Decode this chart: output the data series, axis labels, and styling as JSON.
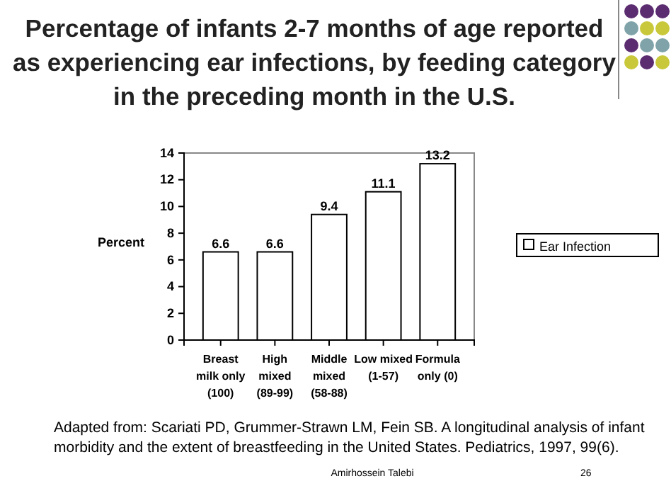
{
  "chart_data": {
    "type": "bar",
    "title": "Percentage of infants 2-7 months of age reported\nas experiencing ear infections, by feeding category\nin the preceding month in the U.S.",
    "categories": [
      "Breast\nmilk only\n(100)",
      "High\nmixed\n(89-99)",
      "Middle\nmixed\n(58-88)",
      "Low mixed\n(1-57)",
      "Formula\nonly (0)"
    ],
    "series": [
      {
        "name": "Ear Infection",
        "color": "#ffffff",
        "values": [
          6.6,
          6.6,
          9.4,
          11.1,
          13.2
        ]
      }
    ],
    "ylabel": "Percent",
    "ylim": [
      0,
      14
    ],
    "yticks": [
      0,
      2,
      4,
      6,
      8,
      10,
      12,
      14
    ],
    "grid": false,
    "legend": "right",
    "data_labels": true,
    "annotations": [
      "Adapted from: Scariati PD, Grummer-Strawn LM, Fein SB. A longitudinal analysis of infant\nmorbidity and the extent of breastfeeding in the United States. Pediatrics, 1997, 99(6).",
      "Amirhossein Talebi",
      "26"
    ]
  }
}
